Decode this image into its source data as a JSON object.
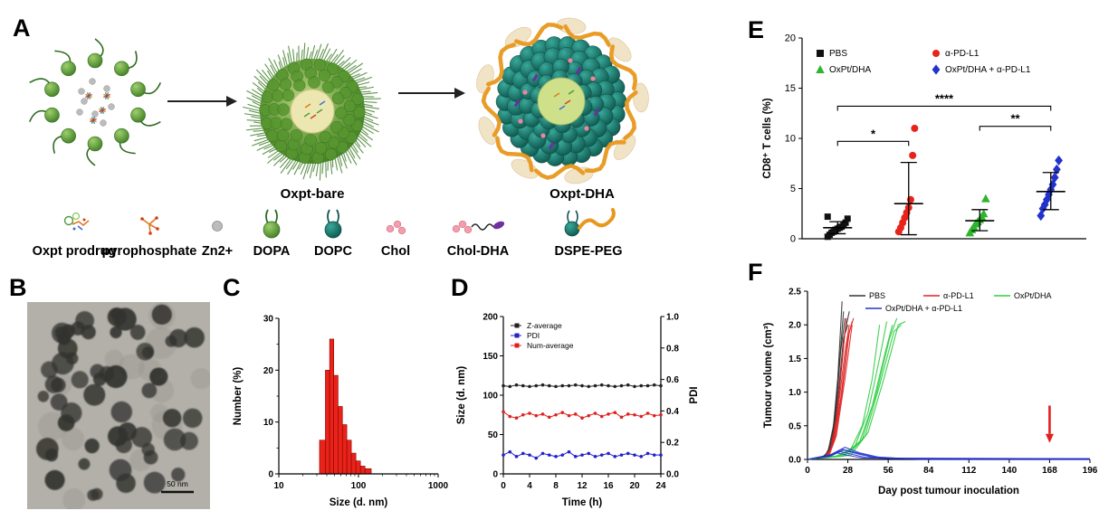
{
  "figure": {
    "panelA": {
      "letter": "A",
      "intermediate_label": "Oxpt-bare",
      "final_label": "Oxpt-DHA",
      "legend": [
        {
          "name": "oxpt-prodrug",
          "label": "Oxpt prodrug"
        },
        {
          "name": "pyrophosphate",
          "label": "pyrophosphate"
        },
        {
          "name": "zinc-ion",
          "label": "Zn2+"
        },
        {
          "name": "dopa",
          "label": "DOPA"
        },
        {
          "name": "dopc",
          "label": "DOPC"
        },
        {
          "name": "chol",
          "label": "Chol"
        },
        {
          "name": "chol-dha",
          "label": "Chol-DHA"
        },
        {
          "name": "dspe-peg",
          "label": "DSPE-PEG"
        }
      ]
    },
    "panelB": {
      "letter": "B",
      "scale_bar_label": "50 nm"
    },
    "panelC": {
      "letter": "C"
    },
    "panelD": {
      "letter": "D"
    },
    "panelE": {
      "letter": "E"
    },
    "panelF": {
      "letter": "F"
    }
  },
  "chart_data": [
    {
      "panel": "C",
      "type": "bar",
      "xscale": "log",
      "xlabel": "Size (d. nm)",
      "ylabel": "Number (%)",
      "xlim": [
        10,
        1000
      ],
      "ylim": [
        0,
        30
      ],
      "xticks": [
        10,
        100,
        1000
      ],
      "yticks": [
        0,
        10,
        20,
        30
      ],
      "bar_color": "#e8231a",
      "bins_dnm": [
        36,
        41,
        46,
        52,
        59,
        67,
        76,
        87,
        99,
        113,
        129
      ],
      "values": [
        6.5,
        20,
        26,
        19,
        13,
        9.5,
        6.5,
        4,
        2.5,
        1.5,
        1
      ]
    },
    {
      "panel": "D",
      "type": "line",
      "xlabel": "Time (h)",
      "ylabel_left": "Size (d. nm)",
      "ylabel_right": "PDI",
      "xlim": [
        0,
        24
      ],
      "xticks": [
        0,
        4,
        8,
        12,
        16,
        20,
        24
      ],
      "ylim_left": [
        0,
        200
      ],
      "yticks_left": [
        0,
        50,
        100,
        150,
        200
      ],
      "ylim_right": [
        0,
        1
      ],
      "yticks_right": [
        0.0,
        0.2,
        0.4,
        0.6,
        0.8,
        1.0
      ],
      "right_axis_color": "#2222cc",
      "x": [
        0,
        1,
        2,
        3,
        4,
        5,
        6,
        7,
        8,
        9,
        10,
        11,
        12,
        13,
        14,
        15,
        16,
        17,
        18,
        19,
        20,
        21,
        22,
        23,
        24
      ],
      "series": [
        {
          "name": "Z-average",
          "color": "#222222",
          "axis": "left",
          "values": [
            112,
            111,
            113,
            112,
            111,
            112,
            113,
            112,
            111,
            112,
            112,
            113,
            112,
            111,
            112,
            113,
            112,
            111,
            112,
            113,
            111,
            112,
            112,
            113,
            112
          ]
        },
        {
          "name": "PDI",
          "color": "#2222cc",
          "axis": "right",
          "values": [
            0.12,
            0.14,
            0.11,
            0.13,
            0.12,
            0.1,
            0.13,
            0.12,
            0.11,
            0.12,
            0.14,
            0.11,
            0.12,
            0.13,
            0.11,
            0.12,
            0.13,
            0.11,
            0.12,
            0.13,
            0.12,
            0.11,
            0.13,
            0.12,
            0.12
          ]
        },
        {
          "name": "Num-average",
          "color": "#e02020",
          "axis": "left",
          "values": [
            79,
            73,
            71,
            75,
            77,
            74,
            76,
            72,
            75,
            78,
            74,
            76,
            71,
            74,
            77,
            73,
            76,
            78,
            72,
            76,
            75,
            73,
            77,
            74,
            75
          ]
        }
      ]
    },
    {
      "panel": "E",
      "type": "scatter",
      "ylabel": "CD8⁺ T cells (%)",
      "ylim": [
        0,
        20
      ],
      "yticks": [
        0,
        5,
        10,
        15,
        20
      ],
      "groups": [
        {
          "name": "PBS",
          "color": "#111111",
          "marker": "square",
          "points": [
            0.2,
            0.4,
            0.6,
            0.7,
            0.9,
            1.0,
            1.1,
            1.2,
            1.4,
            1.6,
            2.0,
            2.2
          ],
          "mean": 1.1,
          "err_low": 0.5,
          "err_high": 1.7
        },
        {
          "name": "α-PD-L1",
          "color": "#e8231a",
          "marker": "circle",
          "points": [
            0.7,
            1.1,
            1.6,
            2.1,
            2.6,
            3.1,
            3.9,
            8.3,
            11.0
          ],
          "mean": 3.5,
          "err_low": 0.4,
          "err_high": 7.6
        },
        {
          "name": "OxPt/DHA",
          "color": "#2db52d",
          "marker": "triangle",
          "points": [
            0.6,
            0.9,
            1.2,
            1.5,
            1.7,
            1.9,
            2.2,
            2.5,
            4.0
          ],
          "mean": 1.8,
          "err_low": 0.8,
          "err_high": 2.9
        },
        {
          "name": "OxPt/DHA + α-PD-L1",
          "color": "#2233cc",
          "marker": "diamond",
          "points": [
            2.3,
            3.0,
            3.4,
            3.9,
            4.4,
            4.9,
            5.4,
            6.1,
            6.9,
            7.8
          ],
          "mean": 4.7,
          "err_low": 2.9,
          "err_high": 6.6
        }
      ],
      "significance": [
        {
          "from": 0,
          "to": 3,
          "y": 13.2,
          "label": "****"
        },
        {
          "from": 0,
          "to": 1,
          "y": 9.7,
          "label": "*"
        },
        {
          "from": 2,
          "to": 3,
          "y": 11.2,
          "label": "**"
        }
      ]
    },
    {
      "panel": "F",
      "type": "line",
      "xlabel": "Day post tumour inoculation",
      "ylabel": "Tumour volume (cm³)",
      "xlim": [
        0,
        196
      ],
      "xticks": [
        0,
        28,
        56,
        84,
        112,
        140,
        168,
        196
      ],
      "ylim": [
        0,
        2.5
      ],
      "yticks": [
        0.0,
        0.5,
        1.0,
        1.5,
        2.0,
        2.5
      ],
      "series": [
        {
          "name": "PBS",
          "color": "#333333",
          "curves": [
            [
              [
                0,
                0
              ],
              [
                10,
                0.03
              ],
              [
                14,
                0.1
              ],
              [
                18,
                0.5
              ],
              [
                21,
                1.2
              ],
              [
                24,
                2.35
              ]
            ],
            [
              [
                0,
                0
              ],
              [
                10,
                0.03
              ],
              [
                15,
                0.12
              ],
              [
                19,
                0.6
              ],
              [
                22,
                1.4
              ],
              [
                25,
                2.2
              ]
            ],
            [
              [
                0,
                0
              ],
              [
                12,
                0.05
              ],
              [
                16,
                0.2
              ],
              [
                20,
                0.8
              ],
              [
                23,
                1.6
              ],
              [
                26,
                2.1
              ]
            ],
            [
              [
                0,
                0
              ],
              [
                12,
                0.04
              ],
              [
                17,
                0.25
              ],
              [
                21,
                0.9
              ],
              [
                25,
                1.8
              ],
              [
                28,
                2.0
              ]
            ],
            [
              [
                0,
                0
              ],
              [
                13,
                0.05
              ],
              [
                18,
                0.3
              ],
              [
                22,
                1.0
              ],
              [
                26,
                1.9
              ],
              [
                29,
                2.2
              ]
            ]
          ]
        },
        {
          "name": "α-PD-L1",
          "color": "#e02020",
          "curves": [
            [
              [
                0,
                0
              ],
              [
                12,
                0.04
              ],
              [
                16,
                0.15
              ],
              [
                20,
                0.6
              ],
              [
                24,
                1.5
              ],
              [
                27,
                2.1
              ]
            ],
            [
              [
                0,
                0
              ],
              [
                13,
                0.05
              ],
              [
                17,
                0.2
              ],
              [
                21,
                0.7
              ],
              [
                26,
                1.6
              ],
              [
                29,
                2.0
              ]
            ],
            [
              [
                0,
                0
              ],
              [
                14,
                0.05
              ],
              [
                18,
                0.25
              ],
              [
                23,
                0.9
              ],
              [
                28,
                1.8
              ],
              [
                31,
                2.05
              ]
            ],
            [
              [
                0,
                0
              ],
              [
                14,
                0.06
              ],
              [
                19,
                0.3
              ],
              [
                24,
                1.0
              ],
              [
                29,
                1.9
              ],
              [
                32,
                2.1
              ]
            ],
            [
              [
                0,
                0
              ],
              [
                15,
                0.06
              ],
              [
                20,
                0.35
              ],
              [
                26,
                1.2
              ],
              [
                31,
                2.0
              ]
            ]
          ]
        },
        {
          "name": "OxPt/DHA",
          "color": "#2ecc40",
          "curves": [
            [
              [
                0,
                0
              ],
              [
                20,
                0.05
              ],
              [
                30,
                0.15
              ],
              [
                38,
                0.5
              ],
              [
                45,
                1.2
              ],
              [
                50,
                2.0
              ]
            ],
            [
              [
                0,
                0
              ],
              [
                22,
                0.05
              ],
              [
                33,
                0.2
              ],
              [
                42,
                0.7
              ],
              [
                50,
                1.5
              ],
              [
                55,
                2.05
              ]
            ],
            [
              [
                0,
                0
              ],
              [
                25,
                0.05
              ],
              [
                36,
                0.25
              ],
              [
                45,
                0.8
              ],
              [
                54,
                1.6
              ],
              [
                59,
                2.0
              ]
            ],
            [
              [
                0,
                0
              ],
              [
                25,
                0.06
              ],
              [
                38,
                0.3
              ],
              [
                48,
                1.0
              ],
              [
                57,
                1.8
              ],
              [
                62,
                2.1
              ]
            ],
            [
              [
                0,
                0
              ],
              [
                28,
                0.06
              ],
              [
                40,
                0.35
              ],
              [
                50,
                1.1
              ],
              [
                60,
                1.9
              ],
              [
                65,
                2.0
              ]
            ],
            [
              [
                0,
                0
              ],
              [
                30,
                0.06
              ],
              [
                42,
                0.4
              ],
              [
                53,
                1.2
              ],
              [
                63,
                2.0
              ],
              [
                68,
                2.05
              ]
            ]
          ]
        },
        {
          "name": "OxPt/DHA + α-PD-L1",
          "color": "#2233cc",
          "curves": [
            [
              [
                0,
                0
              ],
              [
                15,
                0.06
              ],
              [
                22,
                0.12
              ],
              [
                30,
                0.08
              ],
              [
                40,
                0.03
              ],
              [
                60,
                0.01
              ],
              [
                196,
                0.01
              ]
            ],
            [
              [
                0,
                0
              ],
              [
                15,
                0.05
              ],
              [
                24,
                0.15
              ],
              [
                34,
                0.1
              ],
              [
                45,
                0.04
              ],
              [
                70,
                0.01
              ],
              [
                196,
                0.01
              ]
            ],
            [
              [
                0,
                0
              ],
              [
                16,
                0.07
              ],
              [
                26,
                0.18
              ],
              [
                36,
                0.1
              ],
              [
                50,
                0.03
              ],
              [
                80,
                0.0
              ],
              [
                196,
                0.0
              ]
            ],
            [
              [
                0,
                0
              ],
              [
                14,
                0.04
              ],
              [
                20,
                0.1
              ],
              [
                28,
                0.06
              ],
              [
                38,
                0.02
              ],
              [
                196,
                0.0
              ]
            ],
            [
              [
                0,
                0
              ],
              [
                16,
                0.05
              ],
              [
                25,
                0.14
              ],
              [
                35,
                0.08
              ],
              [
                48,
                0.02
              ],
              [
                196,
                0.01
              ]
            ]
          ]
        }
      ],
      "annotation_arrow": {
        "x": 168,
        "y_from": 0.8,
        "y_to": 0.38,
        "color": "#e02020"
      }
    }
  ]
}
